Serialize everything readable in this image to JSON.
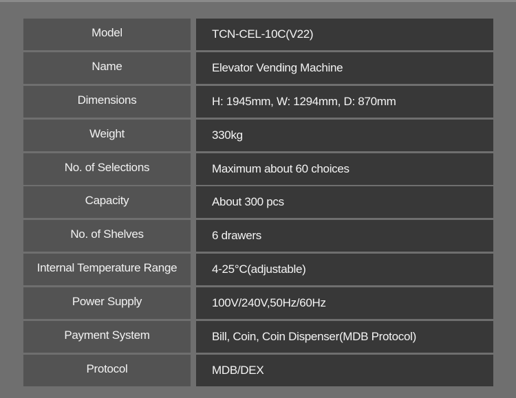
{
  "specs": [
    {
      "label": "Model",
      "value": "TCN-CEL-10C(V22)"
    },
    {
      "label": "Name",
      "value": "Elevator Vending Machine"
    },
    {
      "label": "Dimensions",
      "value": "H: 1945mm, W: 1294mm, D: 870mm"
    },
    {
      "label": "Weight",
      "value": "330kg"
    },
    {
      "label": "No. of Selections",
      "value": "Maximum about 60 choices"
    },
    {
      "label": "Capacity",
      "value": "About 300 pcs"
    },
    {
      "label": "No. of Shelves",
      "value": "6 drawers"
    },
    {
      "label": "Internal Temperature Range",
      "value": "4-25°C(adjustable)"
    },
    {
      "label": "Power Supply",
      "value": "100V/240V,50Hz/60Hz"
    },
    {
      "label": "Payment System",
      "value": "Bill, Coin, Coin Dispenser(MDB Protocol)"
    },
    {
      "label": "Protocol",
      "value": "MDB/DEX"
    }
  ]
}
